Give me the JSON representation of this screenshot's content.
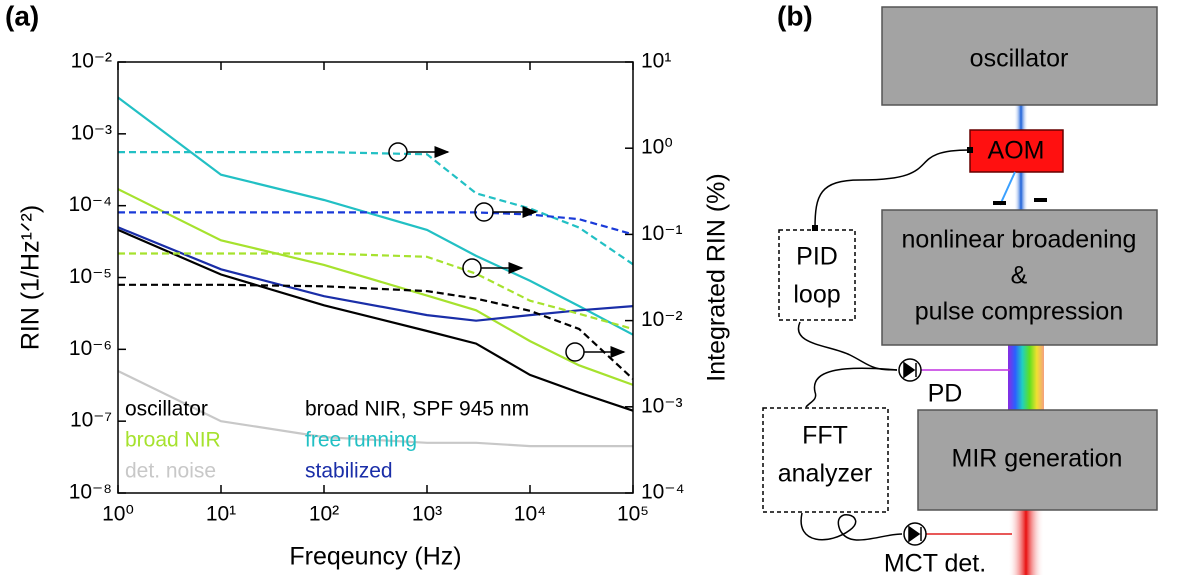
{
  "panels": [
    "(a)",
    "(b)"
  ],
  "chart_data": {
    "type": "line",
    "xlabel": "Freqeuncy (Hz)",
    "ylabel": "RIN (1/Hz¹ᐟ²)",
    "y2label": "Integrated RIN (%)",
    "xscale": "log",
    "yscale": "log",
    "y2scale": "log",
    "xlim": [
      1,
      100000
    ],
    "ylim": [
      1e-08,
      0.01
    ],
    "y2lim": [
      0.0001,
      10
    ],
    "xticks": [
      {
        "value": 1,
        "label": "10⁰"
      },
      {
        "value": 10,
        "label": "10¹"
      },
      {
        "value": 100,
        "label": "10²"
      },
      {
        "value": 1000,
        "label": "10³"
      },
      {
        "value": 10000,
        "label": "10⁴"
      },
      {
        "value": 100000,
        "label": "10⁵"
      }
    ],
    "yticks": [
      {
        "value": 1e-08,
        "label": "10⁻⁸"
      },
      {
        "value": 1e-07,
        "label": "10⁻⁷"
      },
      {
        "value": 1e-06,
        "label": "10⁻⁶"
      },
      {
        "value": 1e-05,
        "label": "10⁻⁵"
      },
      {
        "value": 0.0001,
        "label": "10⁻⁴"
      },
      {
        "value": 0.001,
        "label": "10⁻³"
      },
      {
        "value": 0.01,
        "label": "10⁻²"
      }
    ],
    "y2ticks": [
      {
        "value": 0.0001,
        "label": "10⁻⁴"
      },
      {
        "value": 0.001,
        "label": "10⁻³"
      },
      {
        "value": 0.01,
        "label": "10⁻²"
      },
      {
        "value": 0.1,
        "label": "10⁻¹"
      },
      {
        "value": 1,
        "label": "10⁰"
      },
      {
        "value": 10,
        "label": "10¹"
      }
    ],
    "legend_title": "broad NIR, SPF 945 nm",
    "x": [
      1,
      10,
      100,
      1000,
      3000,
      10000,
      30000,
      100000
    ],
    "series": [
      {
        "name": "oscillator",
        "color": "#000000",
        "linestyle": "solid",
        "values": [
          4.6e-05,
          1.1e-05,
          4.1e-06,
          1.8e-06,
          1.2e-06,
          4.4e-07,
          2.5e-07,
          1.4e-07
        ]
      },
      {
        "name": "broad NIR",
        "color": "#a6e22e",
        "linestyle": "solid",
        "values": [
          0.00017,
          3.3e-05,
          1.5e-05,
          5.6e-06,
          3.5e-06,
          1.3e-06,
          6e-07,
          3.2e-07
        ]
      },
      {
        "name": "det. noise",
        "color": "#c8c8c8",
        "linestyle": "solid",
        "values": [
          5e-07,
          1e-07,
          6e-08,
          5e-08,
          5e-08,
          4.5e-08,
          4.5e-08,
          4.5e-08
        ]
      },
      {
        "name": "free running",
        "color": "#22c0c4",
        "linestyle": "solid",
        "values": [
          0.0032,
          0.00027,
          0.00012,
          4.6e-05,
          2e-05,
          9e-06,
          4e-06,
          1.6e-06
        ]
      },
      {
        "name": "stabilized",
        "color": "#1a2ea8",
        "linestyle": "solid",
        "values": [
          5e-05,
          1.3e-05,
          5.5e-06,
          3e-06,
          2.5e-06,
          3e-06,
          3.5e-06,
          4e-06
        ]
      },
      {
        "color": "#000000",
        "linestyle": "dashed",
        "axis": "y2",
        "values": [
          0.026,
          0.026,
          0.025,
          0.022,
          0.018,
          0.013,
          0.008,
          0.0021
        ]
      },
      {
        "color": "#a6e22e",
        "linestyle": "dashed",
        "axis": "y2",
        "values": [
          0.06,
          0.06,
          0.06,
          0.055,
          0.035,
          0.017,
          0.012,
          0.008
        ]
      },
      {
        "color": "#22c0c4",
        "linestyle": "dashed",
        "axis": "y2",
        "values": [
          0.9,
          0.9,
          0.9,
          0.85,
          0.3,
          0.2,
          0.12,
          0.045
        ]
      },
      {
        "color": "#1a3ad8",
        "linestyle": "dashed",
        "axis": "y2",
        "values": [
          0.18,
          0.18,
          0.18,
          0.18,
          0.18,
          0.17,
          0.15,
          0.1
        ]
      }
    ]
  },
  "diagram": {
    "nodes": [
      {
        "label": [
          "oscillator"
        ]
      },
      {
        "label": [
          "AOM"
        ]
      },
      {
        "label": [
          "nonlinear broadening",
          "&",
          "pulse compression"
        ]
      },
      {
        "label": [
          "MIR generation"
        ]
      },
      {
        "label": [
          "PID",
          "loop"
        ]
      },
      {
        "label": [
          "FFT",
          "analyzer"
        ]
      },
      {
        "label": [
          "PD"
        ]
      },
      {
        "label": [
          "MCT det."
        ]
      }
    ]
  }
}
